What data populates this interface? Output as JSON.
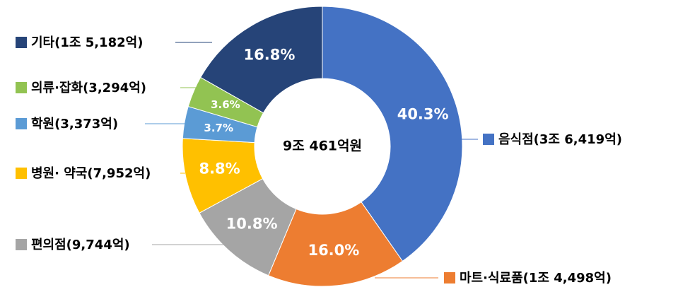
{
  "chart_data": {
    "type": "donut",
    "center_label": "9조 461억원",
    "categories": [
      "음식점(3조 6,419억)",
      "마트·식료품(1조 4,498억)",
      "편의점(9,744억)",
      "병원· 약국(7,952억)",
      "학원(3,373억)",
      "의류·잡화(3,294억)",
      "기타(1조 5,182억)"
    ],
    "values": [
      40.3,
      16.0,
      10.8,
      8.8,
      3.7,
      3.6,
      16.8
    ],
    "value_labels": [
      "40.3%",
      "16.0%",
      "10.8%",
      "8.8%",
      "3.7%",
      "3.6%",
      "16.8%"
    ],
    "colors": [
      "#4472c4",
      "#ed7d31",
      "#a5a5a5",
      "#ffc000",
      "#5b9bd5",
      "#92c352",
      "#264478"
    ]
  }
}
